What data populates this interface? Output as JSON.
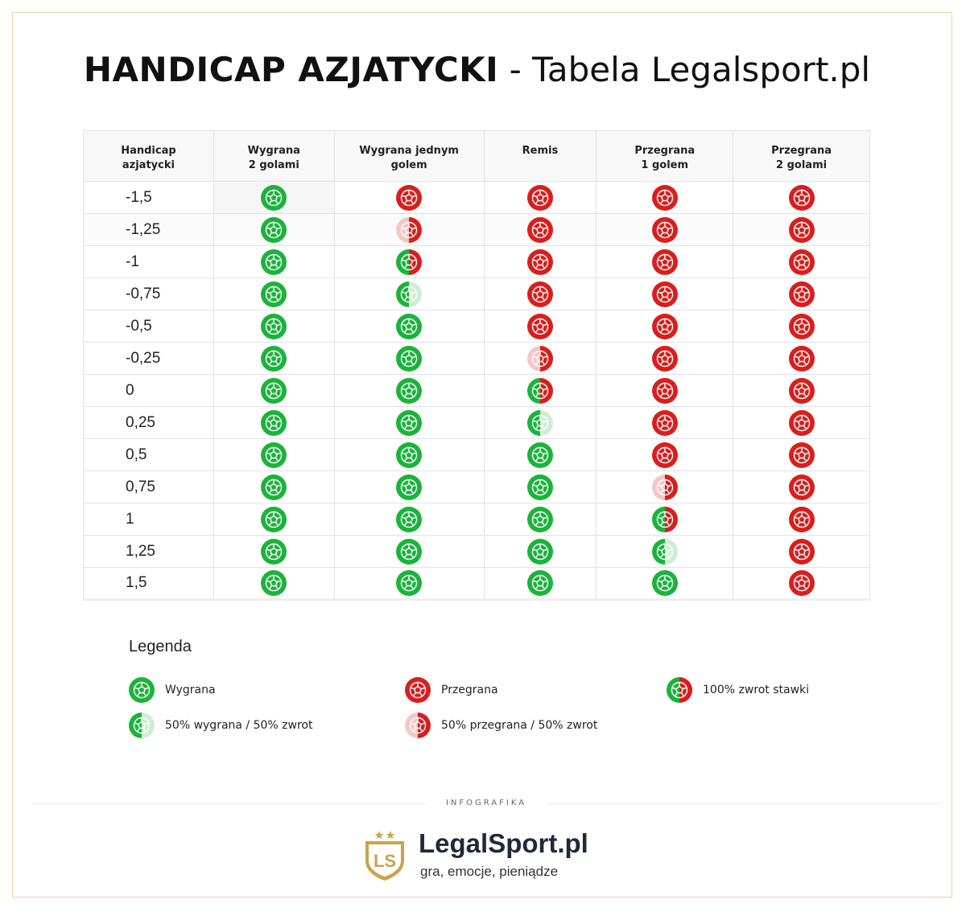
{
  "title": {
    "bold": "HANDICAP AZJATYCKI",
    "light": " - Tabela Legalsport.pl"
  },
  "colors": {
    "green": "#1bb33c",
    "red": "#d91e1e",
    "light_green": "#cfeed5",
    "light_red": "#f4c7c7",
    "gold": "#c9a34e"
  },
  "table": {
    "headers": [
      {
        "l1": "Handicap",
        "l2": "azjatycki"
      },
      {
        "l1": "Wygrana",
        "l2": "2 golami"
      },
      {
        "l1": "Wygrana jednym",
        "l2": "golem"
      },
      {
        "l1": "Remis",
        "l2": ""
      },
      {
        "l1": "Przegrana",
        "l2": "1 golem"
      },
      {
        "l1": "Przegrana",
        "l2": "2 golami"
      }
    ],
    "rows": [
      {
        "handicap": "-1,5",
        "results": [
          "win",
          "loss",
          "loss",
          "loss",
          "loss"
        ]
      },
      {
        "handicap": "-1,25",
        "results": [
          "win",
          "half_loss",
          "loss",
          "loss",
          "loss"
        ]
      },
      {
        "handicap": "-1",
        "results": [
          "win",
          "refund",
          "loss",
          "loss",
          "loss"
        ]
      },
      {
        "handicap": "-0,75",
        "results": [
          "win",
          "half_win",
          "loss",
          "loss",
          "loss"
        ]
      },
      {
        "handicap": "-0,5",
        "results": [
          "win",
          "win",
          "loss",
          "loss",
          "loss"
        ]
      },
      {
        "handicap": "-0,25",
        "results": [
          "win",
          "win",
          "half_loss",
          "loss",
          "loss"
        ]
      },
      {
        "handicap": "0",
        "results": [
          "win",
          "win",
          "refund",
          "loss",
          "loss"
        ]
      },
      {
        "handicap": "0,25",
        "results": [
          "win",
          "win",
          "half_win",
          "loss",
          "loss"
        ]
      },
      {
        "handicap": "0,5",
        "results": [
          "win",
          "win",
          "win",
          "loss",
          "loss"
        ]
      },
      {
        "handicap": "0,75",
        "results": [
          "win",
          "win",
          "win",
          "half_loss",
          "loss"
        ]
      },
      {
        "handicap": "1",
        "results": [
          "win",
          "win",
          "win",
          "refund",
          "loss"
        ]
      },
      {
        "handicap": "1,25",
        "results": [
          "win",
          "win",
          "win",
          "half_win",
          "loss"
        ]
      },
      {
        "handicap": "1,5",
        "results": [
          "win",
          "win",
          "win",
          "win",
          "loss"
        ]
      }
    ]
  },
  "legend": {
    "title": "Legenda",
    "items": [
      {
        "type": "win",
        "label": "Wygrana"
      },
      {
        "type": "loss",
        "label": "Przegrana"
      },
      {
        "type": "refund",
        "label": "100% zwrot stawki"
      },
      {
        "type": "half_win",
        "label": "50% wygrana / 50% zwrot"
      },
      {
        "type": "half_loss",
        "label": "50% przegrana / 50% zwrot"
      }
    ]
  },
  "footer": {
    "infografika": "INFOGRAFIKA",
    "brand": "LegalSport.pl",
    "tagline": "gra, emocje, pieniądze",
    "logo_letters": "LS"
  }
}
